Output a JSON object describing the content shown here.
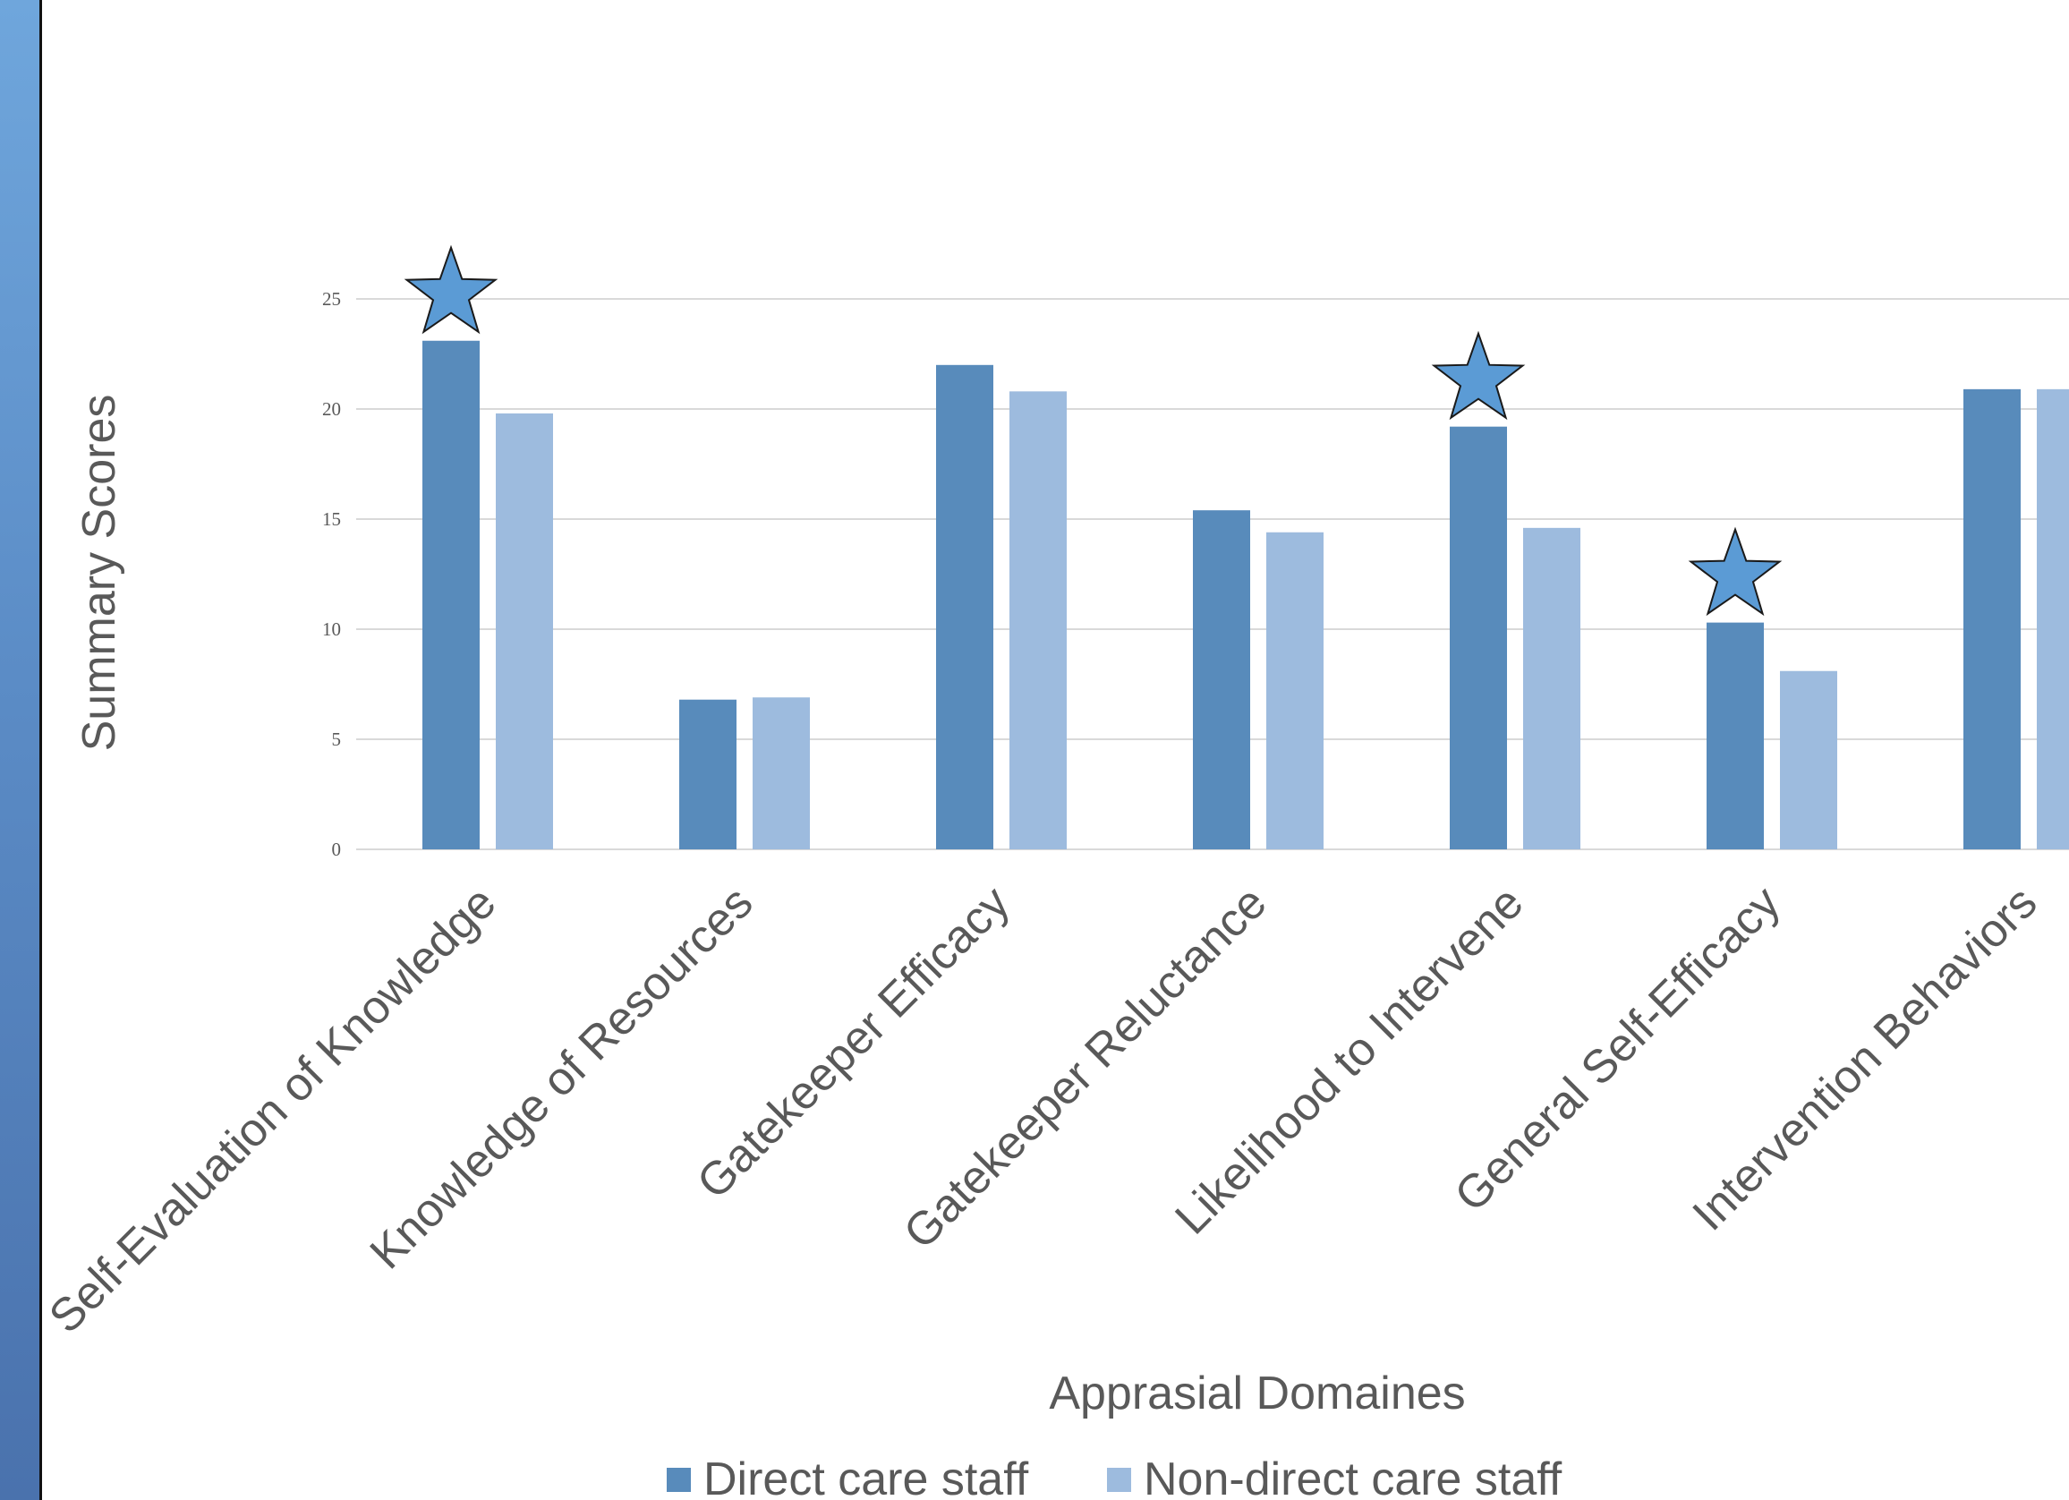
{
  "chart_data": {
    "type": "bar",
    "title": "",
    "xlabel": "Apprasial Domaines",
    "ylabel": "Summary Scores",
    "ylim": [
      0,
      25
    ],
    "yticks": [
      0,
      5,
      10,
      15,
      20,
      25
    ],
    "grid": true,
    "legend_position": "bottom",
    "categories": [
      "Self-Evaluation of Knowledge",
      "Knowledge of Resources",
      "Gatekeeper Efficacy",
      "Gatekeeper Reluctance",
      "Likelihood to Intervene",
      "General Self-Efficacy",
      "Intervention Behaviors"
    ],
    "series": [
      {
        "name": "Direct care staff",
        "color": "#588bbb",
        "values": [
          23.1,
          6.8,
          22.0,
          15.4,
          19.2,
          10.3,
          20.9
        ]
      },
      {
        "name": "Non-direct care staff",
        "color": "#9dbbde",
        "values": [
          19.8,
          6.9,
          20.8,
          14.4,
          14.6,
          8.1,
          20.9
        ]
      }
    ],
    "annotations": {
      "marker": "star-icon",
      "star_color": "#5b9bd5",
      "significant_categories": [
        "Self-Evaluation of Knowledge",
        "Likelihood to Intervene",
        "General Self-Efficacy"
      ]
    }
  }
}
